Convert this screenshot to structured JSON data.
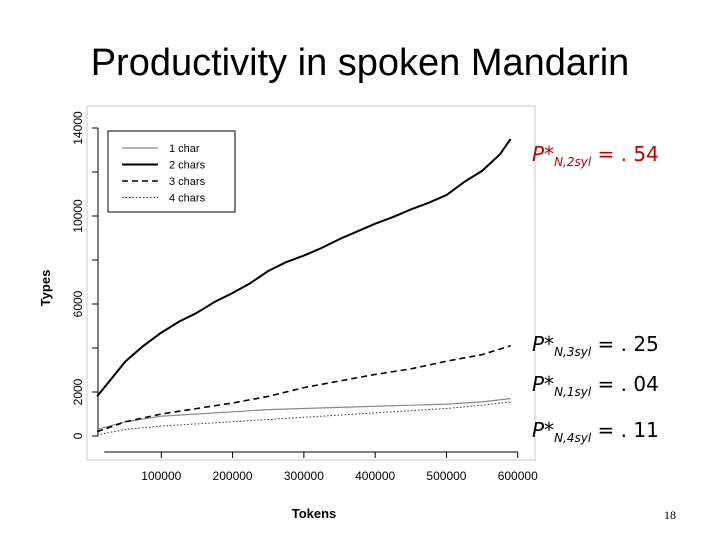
{
  "slide": {
    "title": "Productivity in spoken Mandarin",
    "page_number": "18"
  },
  "annotations": [
    {
      "var": "P*",
      "sub": "N,2syl",
      "eq": " = . ",
      "value": "54",
      "color": "#c00000"
    },
    {
      "var": "P*",
      "sub": "N,3syl",
      "eq": " = . ",
      "value": "25",
      "color": "#000000"
    },
    {
      "var": "P*",
      "sub": "N,1syl",
      "eq": " = . ",
      "value": "04",
      "color": "#000000"
    },
    {
      "var": "P*",
      "sub": "N,4syl",
      "eq": " = . ",
      "value": "11",
      "color": "#000000"
    }
  ],
  "chart_data": {
    "type": "line",
    "xlabel": "Tokens",
    "ylabel": "Types",
    "xlim": [
      0,
      620000
    ],
    "ylim": [
      0,
      14000
    ],
    "xticks": [
      100000,
      200000,
      300000,
      400000,
      500000,
      600000
    ],
    "xtick_labels": [
      "100000",
      "200000",
      "300000",
      "400000",
      "500000",
      "600000"
    ],
    "yticks": [
      0,
      2000,
      6000,
      10000,
      14000
    ],
    "ytick_labels": [
      "0",
      "2000",
      "6000",
      "10000",
      "14000"
    ],
    "legend_position": "top-left",
    "series": [
      {
        "name": "1 char",
        "style": "solid-thin",
        "x": [
          10000,
          50000,
          100000,
          150000,
          200000,
          250000,
          300000,
          350000,
          400000,
          450000,
          500000,
          550000,
          590000
        ],
        "y": [
          300,
          650,
          900,
          1000,
          1100,
          1200,
          1250,
          1300,
          1350,
          1400,
          1450,
          1550,
          1700
        ]
      },
      {
        "name": "2 chars",
        "style": "solid-thick",
        "x": [
          10000,
          50000,
          75000,
          100000,
          125000,
          150000,
          175000,
          200000,
          225000,
          250000,
          275000,
          300000,
          325000,
          350000,
          375000,
          400000,
          425000,
          450000,
          475000,
          500000,
          525000,
          550000,
          575000,
          590000
        ],
        "y": [
          1800,
          3400,
          4100,
          4700,
          5200,
          5600,
          6100,
          6500,
          6950,
          7500,
          7900,
          8200,
          8550,
          8950,
          9300,
          9650,
          9950,
          10300,
          10600,
          10950,
          11550,
          12050,
          12800,
          13500
        ]
      },
      {
        "name": "3 chars",
        "style": "dashed",
        "x": [
          10000,
          50000,
          100000,
          150000,
          200000,
          250000,
          300000,
          350000,
          400000,
          450000,
          500000,
          550000,
          590000
        ],
        "y": [
          200,
          650,
          1000,
          1250,
          1500,
          1800,
          2200,
          2500,
          2800,
          3050,
          3400,
          3700,
          4100
        ]
      },
      {
        "name": "4 chars",
        "style": "dotted",
        "x": [
          10000,
          50000,
          100000,
          150000,
          200000,
          250000,
          300000,
          350000,
          400000,
          450000,
          500000,
          550000,
          590000
        ],
        "y": [
          50,
          300,
          450,
          550,
          650,
          750,
          850,
          950,
          1050,
          1150,
          1250,
          1400,
          1550
        ]
      }
    ]
  }
}
